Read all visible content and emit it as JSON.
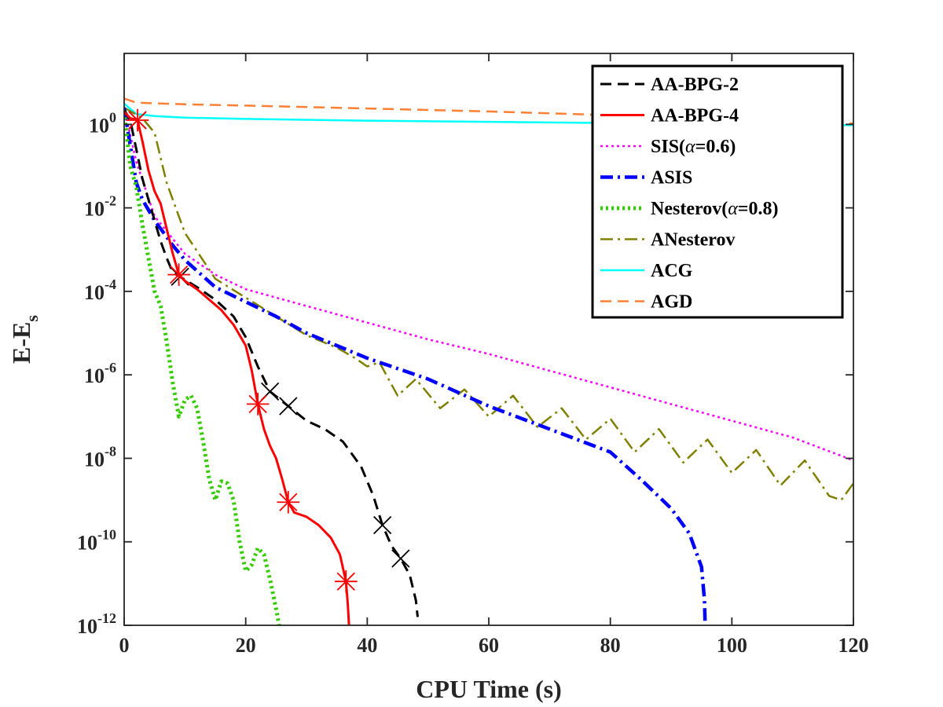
{
  "chart_data": {
    "type": "line",
    "title": "",
    "xlabel": "CPU Time (s)",
    "ylabel_main": "E-E",
    "ylabel_sub": "s",
    "xlim": [
      0,
      120
    ],
    "ylim_log10": [
      -12,
      1.7
    ],
    "x_ticks": [
      0,
      20,
      40,
      60,
      80,
      100,
      120
    ],
    "y_ticks": [
      {
        "exp": 0,
        "base": "10",
        "sup": "0",
        "plain": "1"
      },
      {
        "exp": -2,
        "base": "10",
        "sup": "-2"
      },
      {
        "exp": -4,
        "base": "10",
        "sup": "-4"
      },
      {
        "exp": -6,
        "base": "10",
        "sup": "-6"
      },
      {
        "exp": -8,
        "base": "10",
        "sup": "-8"
      },
      {
        "exp": -10,
        "base": "10",
        "sup": "-10"
      },
      {
        "exp": -12,
        "base": "10",
        "sup": "-12"
      }
    ],
    "legend_position": "top-right",
    "series": [
      {
        "name": "AA-BPG-2",
        "color": "#000000",
        "dash": "dashed",
        "marker": "x",
        "markers_log10": [
          [
            2.2,
            0.1
          ],
          [
            9.2,
            -3.65
          ],
          [
            24,
            -6.4
          ],
          [
            27,
            -6.75
          ],
          [
            42.5,
            -9.6
          ],
          [
            45.5,
            -10.4
          ]
        ],
        "points_log10": [
          [
            0,
            0.35
          ],
          [
            1,
            0.1
          ],
          [
            2,
            -0.6
          ],
          [
            3,
            -1.3
          ],
          [
            4,
            -1.8
          ],
          [
            5,
            -2.3
          ],
          [
            6,
            -2.8
          ],
          [
            7,
            -3.2
          ],
          [
            8,
            -3.55
          ],
          [
            9.2,
            -3.65
          ],
          [
            12,
            -3.9
          ],
          [
            15,
            -4.2
          ],
          [
            18,
            -4.6
          ],
          [
            20,
            -5.1
          ],
          [
            22,
            -5.8
          ],
          [
            24,
            -6.4
          ],
          [
            27,
            -6.75
          ],
          [
            30,
            -7.1
          ],
          [
            33,
            -7.3
          ],
          [
            36,
            -7.6
          ],
          [
            39,
            -8.2
          ],
          [
            41,
            -8.9
          ],
          [
            42.5,
            -9.6
          ],
          [
            44,
            -10.1
          ],
          [
            45.5,
            -10.4
          ],
          [
            47,
            -10.8
          ],
          [
            48,
            -11.4
          ],
          [
            48.3,
            -11.8
          ]
        ]
      },
      {
        "name": "AA-BPG-4",
        "color": "#ff0000",
        "dash": "solid",
        "marker": "asterisk",
        "markers_log10": [
          [
            2.2,
            0.1
          ],
          [
            9,
            -3.6
          ],
          [
            22,
            -6.7
          ],
          [
            27,
            -9.05
          ],
          [
            36.5,
            -10.95
          ]
        ],
        "points_log10": [
          [
            0,
            0.3
          ],
          [
            1,
            0.15
          ],
          [
            2.2,
            0.1
          ],
          [
            3,
            -0.4
          ],
          [
            4,
            -1.1
          ],
          [
            5,
            -1.6
          ],
          [
            6,
            -1.9
          ],
          [
            7,
            -2.5
          ],
          [
            8,
            -3.1
          ],
          [
            9,
            -3.6
          ],
          [
            10,
            -3.75
          ],
          [
            12,
            -3.95
          ],
          [
            14,
            -4.2
          ],
          [
            16,
            -4.45
          ],
          [
            18,
            -4.8
          ],
          [
            20,
            -5.3
          ],
          [
            21,
            -5.9
          ],
          [
            22,
            -6.7
          ],
          [
            23,
            -7.3
          ],
          [
            24,
            -7.7
          ],
          [
            25,
            -8.0
          ],
          [
            26,
            -8.5
          ],
          [
            27,
            -9.05
          ],
          [
            28,
            -9.3
          ],
          [
            30,
            -9.4
          ],
          [
            32,
            -9.6
          ],
          [
            34,
            -9.9
          ],
          [
            35.5,
            -10.3
          ],
          [
            36.5,
            -10.95
          ],
          [
            36.8,
            -11.5
          ],
          [
            37,
            -12
          ]
        ]
      },
      {
        "name": "SIS(α=0.6)",
        "label_pre": "SIS(",
        "label_greek": "α",
        "label_post": "=0.6)",
        "color": "#ff00ff",
        "dash": "dotted",
        "points_log10": [
          [
            0,
            0.4
          ],
          [
            2,
            -0.9
          ],
          [
            5,
            -2.2
          ],
          [
            10,
            -3.1
          ],
          [
            15,
            -3.6
          ],
          [
            20,
            -3.95
          ],
          [
            30,
            -4.35
          ],
          [
            40,
            -4.75
          ],
          [
            50,
            -5.15
          ],
          [
            60,
            -5.5
          ],
          [
            70,
            -5.9
          ],
          [
            80,
            -6.3
          ],
          [
            90,
            -6.7
          ],
          [
            100,
            -7.1
          ],
          [
            110,
            -7.5
          ],
          [
            120,
            -8.05
          ]
        ]
      },
      {
        "name": "ASIS",
        "color": "#0000ff",
        "dash": "dashdot",
        "points_log10": [
          [
            0,
            0.4
          ],
          [
            1,
            -0.5
          ],
          [
            2,
            -1.4
          ],
          [
            3,
            -1.8
          ],
          [
            5,
            -2.3
          ],
          [
            8,
            -2.9
          ],
          [
            10,
            -3.25
          ],
          [
            15,
            -3.9
          ],
          [
            20,
            -4.25
          ],
          [
            25,
            -4.6
          ],
          [
            30,
            -5.0
          ],
          [
            40,
            -5.6
          ],
          [
            50,
            -6.1
          ],
          [
            60,
            -6.75
          ],
          [
            70,
            -7.3
          ],
          [
            80,
            -7.85
          ],
          [
            85,
            -8.5
          ],
          [
            90,
            -9.2
          ],
          [
            93,
            -9.8
          ],
          [
            95,
            -10.6
          ],
          [
            95.5,
            -11.4
          ],
          [
            95.6,
            -12
          ]
        ]
      },
      {
        "name": "Nesterov(α=0.8)",
        "label_pre": "Nesterov(",
        "label_greek": "α",
        "label_post": "=0.8)",
        "color": "#33cc00",
        "dash": "dotted",
        "points_log10": [
          [
            0,
            0.3
          ],
          [
            1,
            -1.0
          ],
          [
            2,
            -1.5
          ],
          [
            3,
            -2.4
          ],
          [
            4,
            -3.2
          ],
          [
            5,
            -4.0
          ],
          [
            6,
            -4.35
          ],
          [
            7,
            -5.2
          ],
          [
            8,
            -6.2
          ],
          [
            9,
            -7.0
          ],
          [
            10,
            -6.6
          ],
          [
            11,
            -6.5
          ],
          [
            12,
            -6.8
          ],
          [
            13,
            -7.6
          ],
          [
            14,
            -8.5
          ],
          [
            15,
            -9.0
          ],
          [
            16,
            -8.55
          ],
          [
            17,
            -8.6
          ],
          [
            18,
            -9.0
          ],
          [
            19,
            -10.0
          ],
          [
            20,
            -10.7
          ],
          [
            21,
            -10.55
          ],
          [
            22,
            -10.15
          ],
          [
            23,
            -10.3
          ],
          [
            24,
            -10.9
          ],
          [
            25,
            -11.6
          ],
          [
            25.5,
            -12
          ]
        ]
      },
      {
        "name": "ANesterov",
        "color": "#808000",
        "dash": "dashdot",
        "points_log10": [
          [
            0,
            0.4
          ],
          [
            3,
            0.15
          ],
          [
            5,
            -0.2
          ],
          [
            7,
            -1.4
          ],
          [
            10,
            -2.6
          ],
          [
            15,
            -3.7
          ],
          [
            20,
            -4.15
          ],
          [
            25,
            -4.6
          ],
          [
            30,
            -5.05
          ],
          [
            35,
            -5.35
          ],
          [
            38,
            -5.6
          ],
          [
            40,
            -5.8
          ],
          [
            42,
            -5.7
          ],
          [
            45,
            -6.5
          ],
          [
            48,
            -6.1
          ],
          [
            52,
            -6.8
          ],
          [
            56,
            -6.35
          ],
          [
            60,
            -7.0
          ],
          [
            64,
            -6.5
          ],
          [
            68,
            -7.25
          ],
          [
            72,
            -6.8
          ],
          [
            76,
            -7.55
          ],
          [
            80,
            -7.05
          ],
          [
            84,
            -7.85
          ],
          [
            88,
            -7.3
          ],
          [
            92,
            -8.1
          ],
          [
            96,
            -7.55
          ],
          [
            100,
            -8.35
          ],
          [
            104,
            -7.8
          ],
          [
            108,
            -8.65
          ],
          [
            112,
            -8.05
          ],
          [
            116,
            -8.9
          ],
          [
            118,
            -9.0
          ],
          [
            120,
            -8.6
          ]
        ]
      },
      {
        "name": "ACG",
        "color": "#00ffff",
        "dash": "solid",
        "points_log10": [
          [
            0,
            0.5
          ],
          [
            2,
            0.25
          ],
          [
            5,
            0.2
          ],
          [
            10,
            0.16
          ],
          [
            20,
            0.13
          ],
          [
            40,
            0.09
          ],
          [
            60,
            0.06
          ],
          [
            80,
            0.03
          ],
          [
            100,
            0.0
          ],
          [
            120,
            -0.02
          ]
        ]
      },
      {
        "name": "AGD",
        "color": "#ff8033",
        "dash": "dashed",
        "points_log10": [
          [
            0,
            0.62
          ],
          [
            2,
            0.52
          ],
          [
            10,
            0.48
          ],
          [
            20,
            0.45
          ],
          [
            40,
            0.38
          ],
          [
            60,
            0.31
          ],
          [
            80,
            0.22
          ],
          [
            100,
            0.13
          ],
          [
            120,
            0.02
          ]
        ]
      }
    ]
  }
}
